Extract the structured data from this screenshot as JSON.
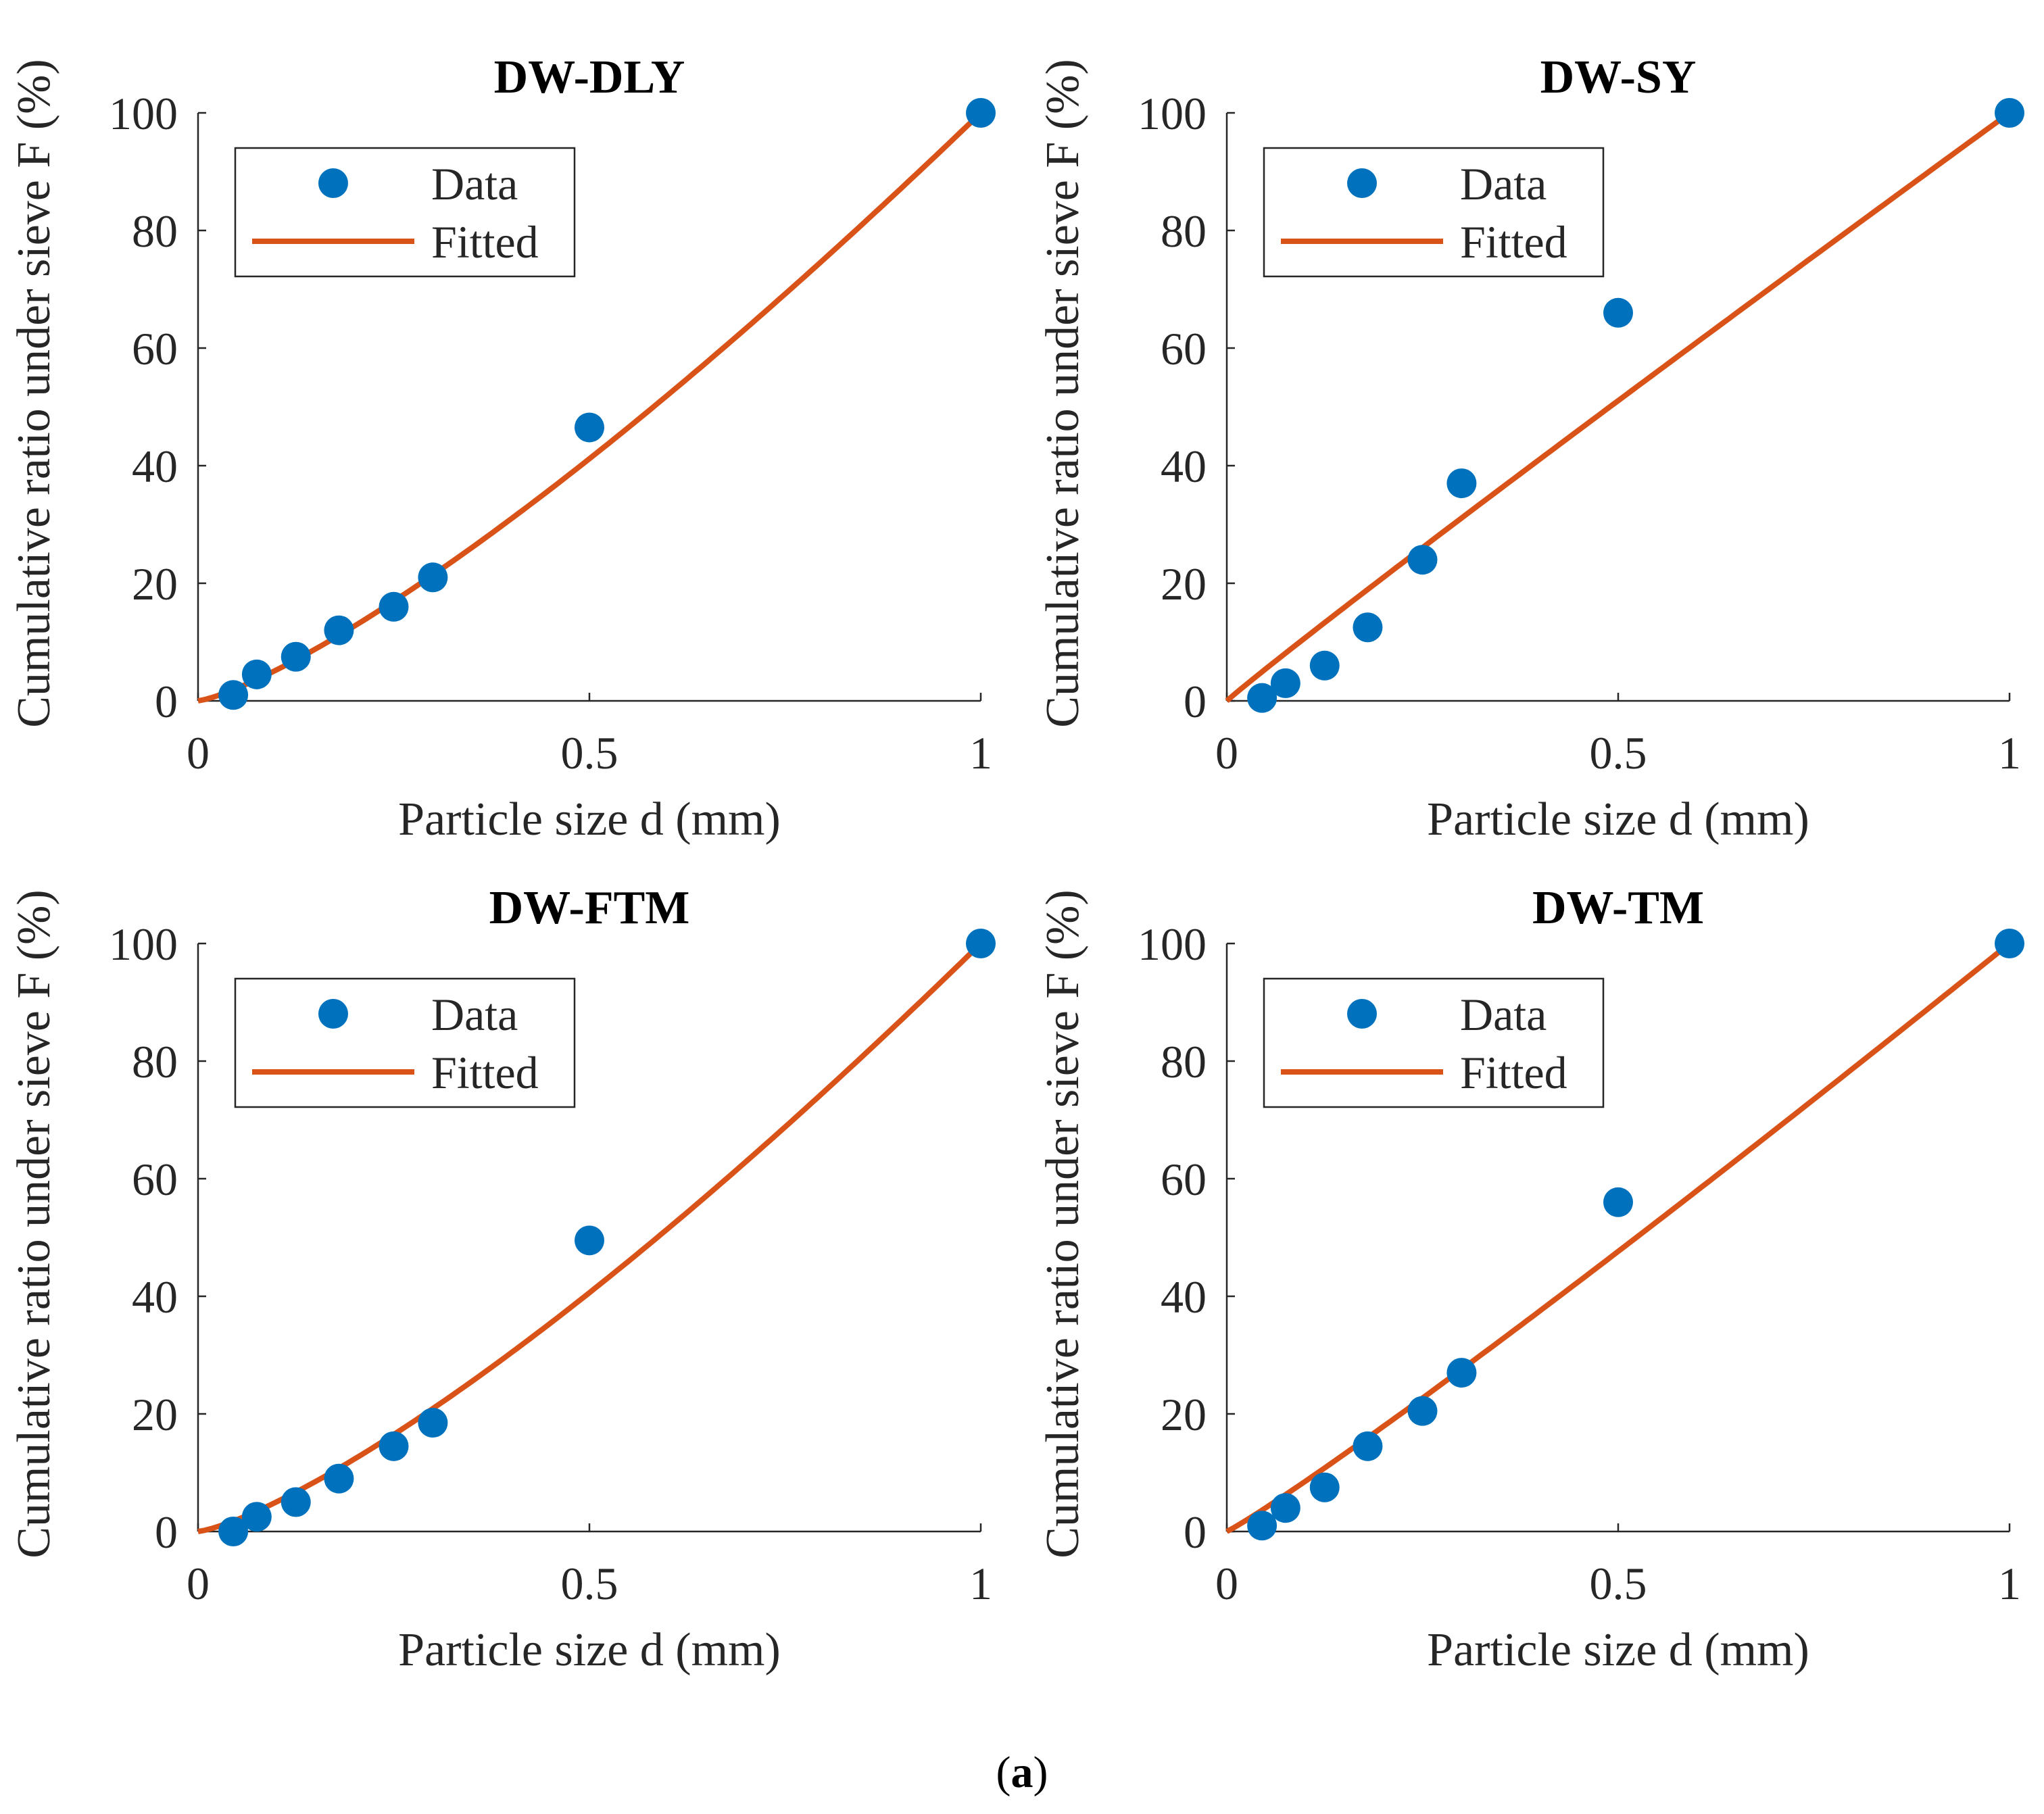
{
  "figure_caption": {
    "open": "(",
    "label": "a",
    "close": ")"
  },
  "legend_labels": {
    "data": "Data",
    "fitted": "Fitted"
  },
  "colors": {
    "data": "#0072BD",
    "fitted": "#D95319",
    "axis": "#262626",
    "text": "#262626"
  },
  "chart_data": [
    {
      "type": "scatter",
      "title": "DW-DLY",
      "xlabel": "Particle size d (mm)",
      "ylabel": "Cumulative ratio under sieve F (%)",
      "xlim": [
        0,
        1
      ],
      "ylim": [
        0,
        100
      ],
      "xticks": [
        "0",
        "0.5",
        "1"
      ],
      "yticks": [
        "0",
        "20",
        "40",
        "60",
        "80",
        "100"
      ],
      "legend_position": "top-left",
      "series": [
        {
          "name": "Data",
          "kind": "points",
          "x": [
            0.045,
            0.075,
            0.125,
            0.18,
            0.25,
            0.3,
            0.5,
            1.0
          ],
          "y": [
            1,
            4.5,
            7.5,
            12,
            16,
            21,
            46.5,
            100
          ]
        },
        {
          "name": "Fitted",
          "kind": "curve",
          "model": "power",
          "coefficient": 100,
          "exponent": 1.28
        }
      ]
    },
    {
      "type": "scatter",
      "title": "DW-SY",
      "xlabel": "Particle size d (mm)",
      "ylabel": "Cumulative ratio under sieve F (%)",
      "xlim": [
        0,
        1
      ],
      "ylim": [
        0,
        100
      ],
      "xticks": [
        "0",
        "0.5",
        "1"
      ],
      "yticks": [
        "0",
        "20",
        "40",
        "60",
        "80",
        "100"
      ],
      "legend_position": "top-left",
      "series": [
        {
          "name": "Data",
          "kind": "points",
          "x": [
            0.045,
            0.075,
            0.125,
            0.18,
            0.25,
            0.3,
            0.5,
            1.0
          ],
          "y": [
            0.5,
            3,
            6,
            12.5,
            24,
            37,
            66,
            100
          ]
        },
        {
          "name": "Fitted",
          "kind": "curve",
          "model": "power",
          "coefficient": 100,
          "exponent": 0.97
        }
      ]
    },
    {
      "type": "scatter",
      "title": "DW-FTM",
      "xlabel": "Particle size d (mm)",
      "ylabel": "Cumulative ratio under sieve F (%)",
      "xlim": [
        0,
        1
      ],
      "ylim": [
        0,
        100
      ],
      "xticks": [
        "0",
        "0.5",
        "1"
      ],
      "yticks": [
        "0",
        "20",
        "40",
        "60",
        "80",
        "100"
      ],
      "legend_position": "top-left",
      "series": [
        {
          "name": "Data",
          "kind": "points",
          "x": [
            0.045,
            0.075,
            0.125,
            0.18,
            0.25,
            0.3,
            0.5,
            1.0
          ],
          "y": [
            0,
            2.5,
            5,
            9,
            14.5,
            18.5,
            49.5,
            100
          ]
        },
        {
          "name": "Fitted",
          "kind": "curve",
          "model": "power",
          "coefficient": 100,
          "exponent": 1.3
        }
      ]
    },
    {
      "type": "scatter",
      "title": "DW-TM",
      "xlabel": "Particle size d (mm)",
      "ylabel": "Cumulative ratio under sieve F (%)",
      "xlim": [
        0,
        1
      ],
      "ylim": [
        0,
        100
      ],
      "xticks": [
        "0",
        "0.5",
        "1"
      ],
      "yticks": [
        "0",
        "20",
        "40",
        "60",
        "80",
        "100"
      ],
      "legend_position": "top-left",
      "series": [
        {
          "name": "Data",
          "kind": "points",
          "x": [
            0.045,
            0.075,
            0.125,
            0.18,
            0.25,
            0.3,
            0.5,
            1.0
          ],
          "y": [
            1,
            4,
            7.5,
            14.5,
            20.5,
            27,
            56,
            100
          ]
        },
        {
          "name": "Fitted",
          "kind": "curve",
          "model": "power",
          "coefficient": 100,
          "exponent": 1.07
        }
      ]
    }
  ]
}
